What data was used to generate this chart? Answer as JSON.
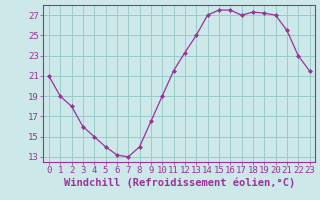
{
  "x": [
    0,
    1,
    2,
    3,
    4,
    5,
    6,
    7,
    8,
    9,
    10,
    11,
    12,
    13,
    14,
    15,
    16,
    17,
    18,
    19,
    20,
    21,
    22,
    23
  ],
  "y": [
    21,
    19,
    18,
    16,
    15,
    14,
    13.2,
    13,
    14,
    16.5,
    19,
    21.5,
    23.3,
    25,
    27,
    27.5,
    27.5,
    27,
    27.3,
    27.2,
    27,
    25.5,
    23,
    21.5
  ],
  "line_color": "#993399",
  "marker_color": "#993399",
  "bg_color": "#cce8e8",
  "grid_color": "#99cccc",
  "xlabel": "Windchill (Refroidissement éolien,°C)",
  "ylabel": "",
  "xlim": [
    -0.5,
    23.5
  ],
  "ylim": [
    12.5,
    28.0
  ],
  "yticks": [
    13,
    15,
    17,
    19,
    21,
    23,
    25,
    27
  ],
  "xticks": [
    0,
    1,
    2,
    3,
    4,
    5,
    6,
    7,
    8,
    9,
    10,
    11,
    12,
    13,
    14,
    15,
    16,
    17,
    18,
    19,
    20,
    21,
    22,
    23
  ],
  "tick_color": "#993399",
  "tick_fontsize": 6.5,
  "xlabel_fontsize": 7.5
}
